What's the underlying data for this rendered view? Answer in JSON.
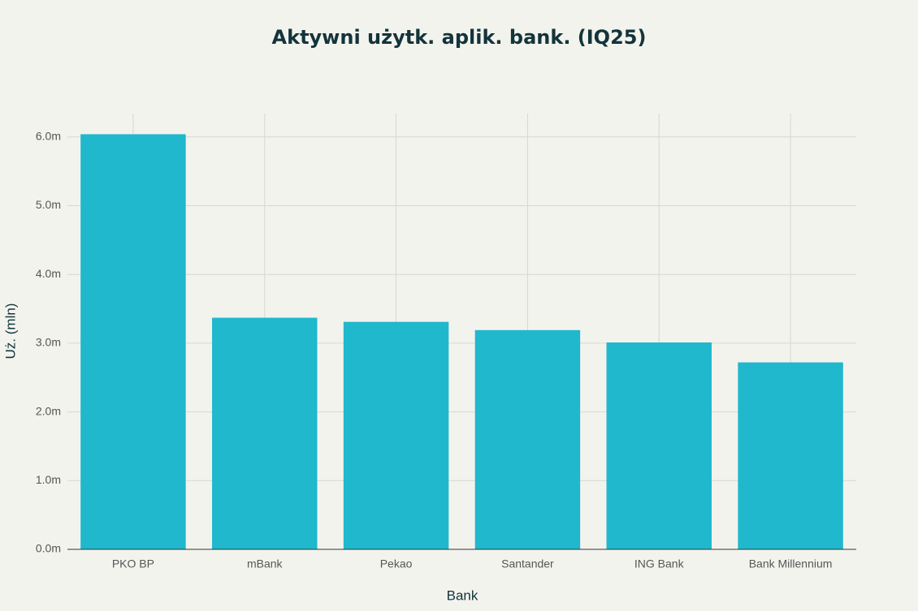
{
  "chart_data": {
    "type": "bar",
    "title": "Aktywni użytk. aplik. bank. (IQ25)",
    "x_label": "Bank",
    "y_label": "Uż. (mln)",
    "categories": [
      "PKO BP",
      "mBank",
      "Pekao",
      "Santander",
      "ING Bank",
      "Bank Millennium"
    ],
    "values": [
      6.04,
      3.37,
      3.31,
      3.19,
      3.01,
      2.72
    ],
    "color": "#1fb8cd",
    "ylim": [
      0,
      6.34
    ],
    "yticks": [
      {
        "value": 0,
        "label": "0.0m"
      },
      {
        "value": 1,
        "label": "1.0m"
      },
      {
        "value": 2,
        "label": "2.0m"
      },
      {
        "value": 3,
        "label": "3.0m"
      },
      {
        "value": 4,
        "label": "4.0m"
      },
      {
        "value": 5,
        "label": "5.0m"
      },
      {
        "value": 6,
        "label": "6.0m"
      }
    ],
    "grid": true
  }
}
